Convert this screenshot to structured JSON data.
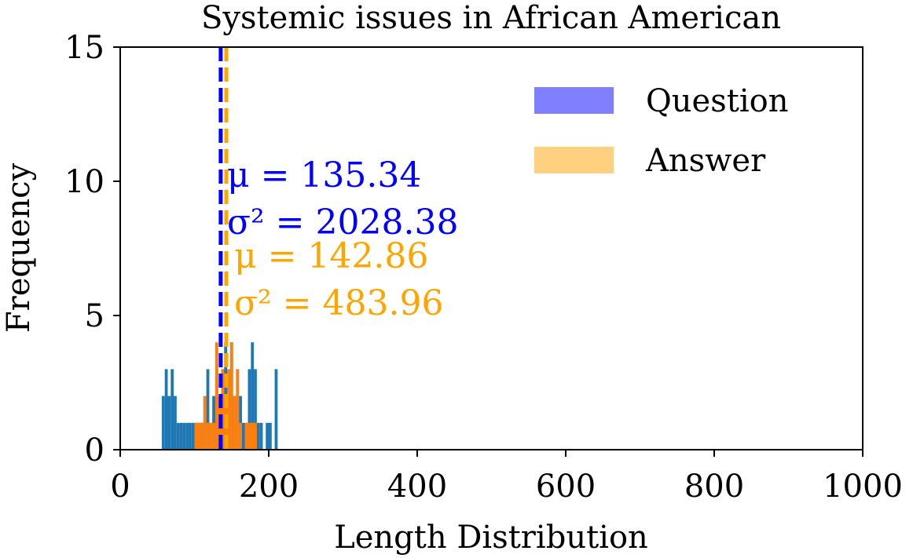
{
  "chart_data": {
    "type": "bar",
    "title": "Systemic issues in African American",
    "xlabel": "Length Distribution",
    "ylabel": "Frequency",
    "xlim": [
      0,
      1000
    ],
    "ylim": [
      0,
      15
    ],
    "xticks": [
      0,
      200,
      400,
      600,
      800,
      1000
    ],
    "yticks": [
      0,
      5,
      10,
      15
    ],
    "xtick_labels": [
      "0",
      "200",
      "400",
      "600",
      "800",
      "1000"
    ],
    "ytick_labels": [
      "0",
      "5",
      "10",
      "15"
    ],
    "bin_width": 4,
    "series": [
      {
        "name": "Question",
        "color": "#1f77b4",
        "legend_color": "#8080ff",
        "mean_line_color": "#0000ff",
        "bins": [
          {
            "x": 56,
            "count": 2
          },
          {
            "x": 60,
            "count": 3
          },
          {
            "x": 64,
            "count": 2
          },
          {
            "x": 68,
            "count": 3
          },
          {
            "x": 72,
            "count": 2
          },
          {
            "x": 76,
            "count": 1
          },
          {
            "x": 80,
            "count": 1
          },
          {
            "x": 84,
            "count": 1
          },
          {
            "x": 88,
            "count": 1
          },
          {
            "x": 92,
            "count": 1
          },
          {
            "x": 96,
            "count": 1
          },
          {
            "x": 100,
            "count": 1
          },
          {
            "x": 104,
            "count": 1
          },
          {
            "x": 108,
            "count": 1
          },
          {
            "x": 112,
            "count": 2
          },
          {
            "x": 116,
            "count": 3
          },
          {
            "x": 120,
            "count": 1
          },
          {
            "x": 124,
            "count": 2
          },
          {
            "x": 128,
            "count": 3
          },
          {
            "x": 132,
            "count": 2
          },
          {
            "x": 136,
            "count": 3
          },
          {
            "x": 140,
            "count": 4
          },
          {
            "x": 144,
            "count": 3
          },
          {
            "x": 148,
            "count": 4
          },
          {
            "x": 152,
            "count": 2
          },
          {
            "x": 156,
            "count": 3
          },
          {
            "x": 160,
            "count": 2
          },
          {
            "x": 164,
            "count": 1
          },
          {
            "x": 168,
            "count": 1
          },
          {
            "x": 172,
            "count": 3
          },
          {
            "x": 176,
            "count": 4
          },
          {
            "x": 180,
            "count": 3
          },
          {
            "x": 184,
            "count": 1
          },
          {
            "x": 188,
            "count": 1
          },
          {
            "x": 196,
            "count": 1
          },
          {
            "x": 200,
            "count": 1
          },
          {
            "x": 208,
            "count": 3
          }
        ]
      },
      {
        "name": "Answer",
        "color": "#ff7f0e",
        "legend_color": "#ffd080",
        "mean_line_color": "#ffa500",
        "bins": [
          {
            "x": 100,
            "count": 1
          },
          {
            "x": 104,
            "count": 1
          },
          {
            "x": 108,
            "count": 1
          },
          {
            "x": 112,
            "count": 2
          },
          {
            "x": 116,
            "count": 1
          },
          {
            "x": 120,
            "count": 1
          },
          {
            "x": 124,
            "count": 1
          },
          {
            "x": 128,
            "count": 4
          },
          {
            "x": 132,
            "count": 2
          },
          {
            "x": 136,
            "count": 3
          },
          {
            "x": 140,
            "count": 2
          },
          {
            "x": 144,
            "count": 3
          },
          {
            "x": 148,
            "count": 4
          },
          {
            "x": 152,
            "count": 2
          },
          {
            "x": 156,
            "count": 3
          },
          {
            "x": 160,
            "count": 1
          },
          {
            "x": 168,
            "count": 1
          },
          {
            "x": 172,
            "count": 1
          },
          {
            "x": 176,
            "count": 1
          },
          {
            "x": 180,
            "count": 1
          }
        ]
      }
    ],
    "mean_lines": [
      {
        "series": "Question",
        "mean": 135.34
      },
      {
        "series": "Answer",
        "mean": 142.86
      }
    ],
    "annotations": [
      {
        "series": "Question",
        "mu_text": "μ = 135.34",
        "sigma_text": "σ² = 2028.38",
        "color": "#0000ff"
      },
      {
        "series": "Answer",
        "mu_text": "μ = 142.86",
        "sigma_text": "σ² = 483.96",
        "color": "#ffa500"
      }
    ],
    "legend": {
      "placement": "upper-right",
      "entries": [
        "Question",
        "Answer"
      ]
    }
  }
}
